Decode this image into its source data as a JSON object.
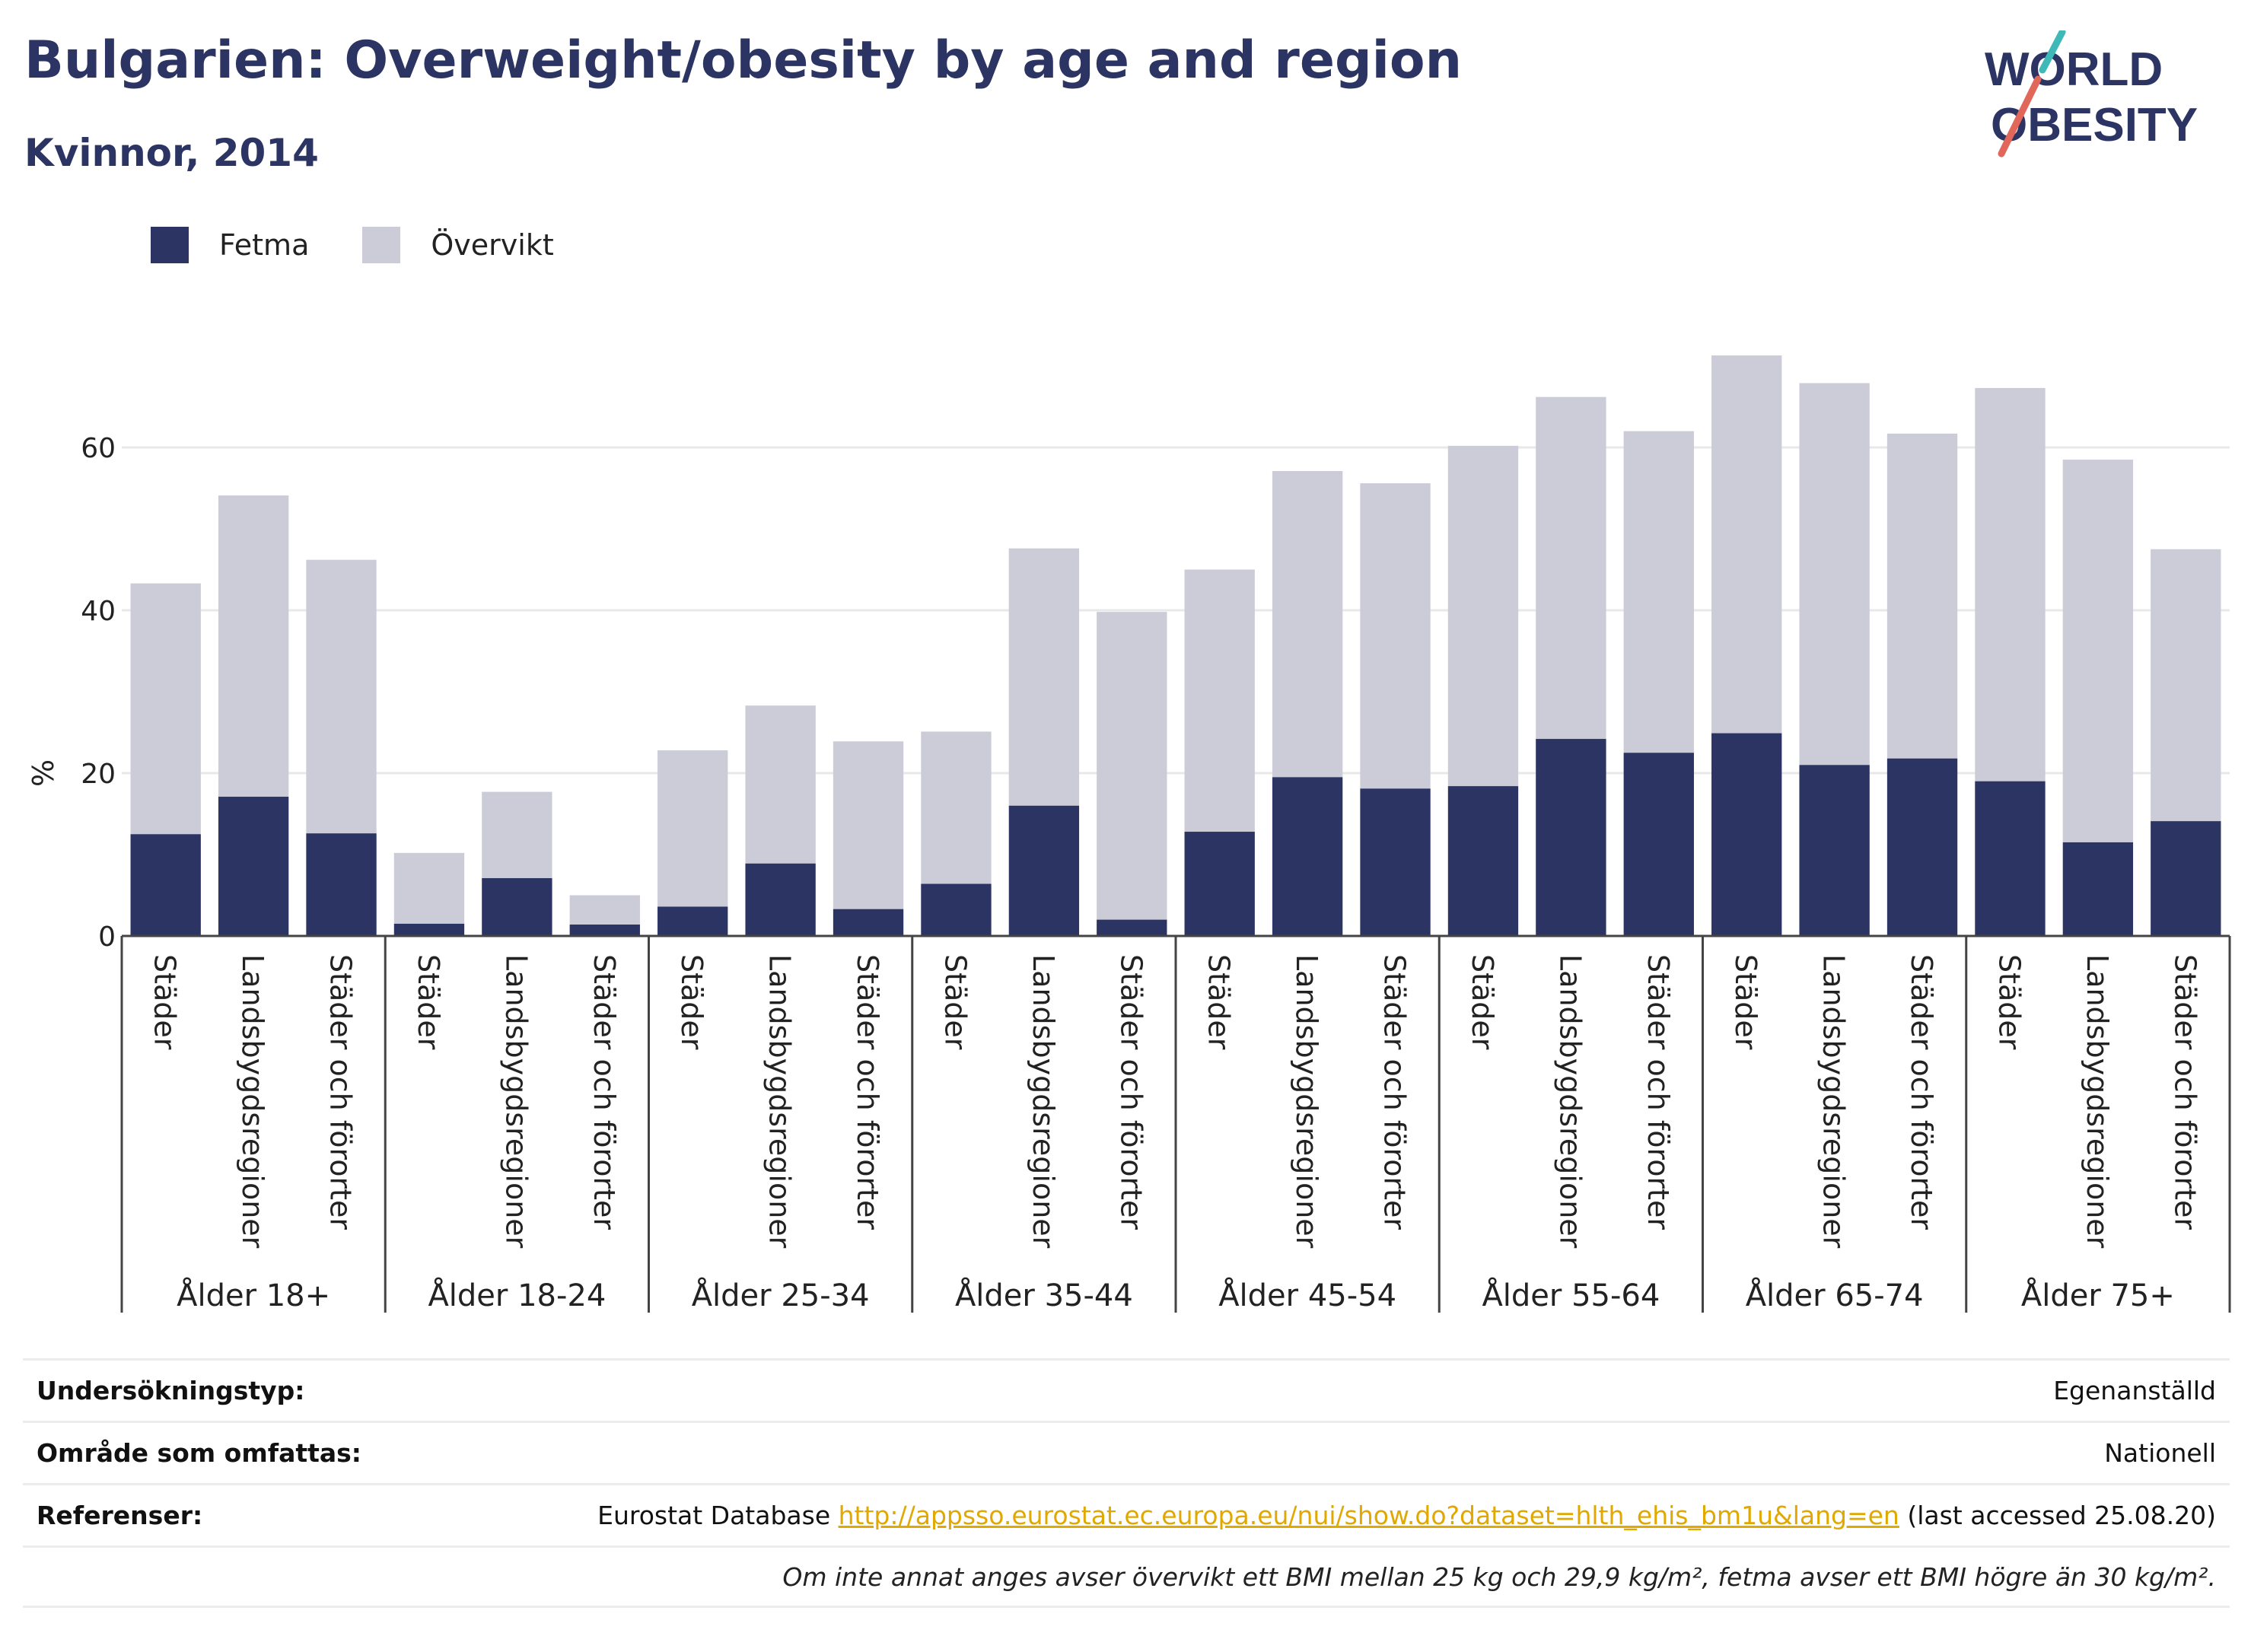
{
  "header": {
    "title": "Bulgarien: Overweight/obesity by age and region",
    "subtitle": "Kvinnor, 2014"
  },
  "logo": {
    "line1": "WORLD",
    "line2": "OBESITY",
    "text_color": "#2b3462",
    "accent_teal": "#3fb8b8",
    "accent_red": "#e2675b"
  },
  "colors": {
    "fetma": "#2b3462",
    "overvikt": "#cbccd8",
    "grid": "#e8e8e8",
    "axis": "#444444"
  },
  "chart_data": {
    "type": "bar",
    "stacked": true,
    "ylabel": "%",
    "ylim": [
      0,
      75
    ],
    "yticks": [
      0,
      20,
      40,
      60
    ],
    "grid": true,
    "legend_position": "top-left",
    "groups": [
      {
        "label": "Ålder 18+",
        "categories": [
          "Städer",
          "Landsbygdsregioner",
          "Städer och förorter"
        ]
      },
      {
        "label": "Ålder 18-24",
        "categories": [
          "Städer",
          "Landsbygdsregioner",
          "Städer och förorter"
        ]
      },
      {
        "label": "Ålder 25-34",
        "categories": [
          "Städer",
          "Landsbygdsregioner",
          "Städer och förorter"
        ]
      },
      {
        "label": "Ålder 35-44",
        "categories": [
          "Städer",
          "Landsbygdsregioner",
          "Städer och förorter"
        ]
      },
      {
        "label": "Ålder 45-54",
        "categories": [
          "Städer",
          "Landsbygdsregioner",
          "Städer och förorter"
        ]
      },
      {
        "label": "Ålder 55-64",
        "categories": [
          "Städer",
          "Landsbygdsregioner",
          "Städer och förorter"
        ]
      },
      {
        "label": "Ålder 65-74",
        "categories": [
          "Städer",
          "Landsbygdsregioner",
          "Städer och förorter"
        ]
      },
      {
        "label": "Ålder 75+",
        "categories": [
          "Städer",
          "Landsbygdsregioner",
          "Städer och förorter"
        ]
      }
    ],
    "series": [
      {
        "name": "Fetma",
        "values": [
          12.5,
          17.1,
          12.6,
          1.5,
          7.1,
          1.4,
          3.6,
          8.9,
          3.3,
          6.4,
          16.0,
          2.0,
          12.8,
          19.5,
          18.1,
          18.4,
          24.2,
          22.5,
          24.9,
          21.0,
          21.8,
          19.0,
          11.5,
          14.1
        ]
      },
      {
        "name": "Övervikt",
        "values": [
          30.8,
          37.0,
          33.6,
          8.7,
          10.6,
          3.6,
          19.2,
          19.4,
          20.6,
          18.7,
          31.6,
          37.8,
          32.2,
          37.6,
          37.5,
          41.8,
          42.0,
          39.5,
          46.4,
          46.9,
          39.9,
          48.3,
          47.0,
          33.4
        ]
      }
    ]
  },
  "info": {
    "survey_label": "Undersökningstyp:",
    "survey_value": "Egenanställd",
    "area_label": "Område som omfattas:",
    "area_value": "Nationell",
    "refs_label": "Referenser:",
    "refs_prefix": "Eurostat Database ",
    "refs_link": "http://appsso.eurostat.ec.europa.eu/nui/show.do?dataset=hlth_ehis_bm1u&lang=en",
    "refs_suffix": " (last accessed 25.08.20)",
    "note": "Om inte annat anges avser övervikt ett BMI mellan 25 kg och 29,9 kg/m², fetma avser ett BMI högre än 30 kg/m²."
  }
}
